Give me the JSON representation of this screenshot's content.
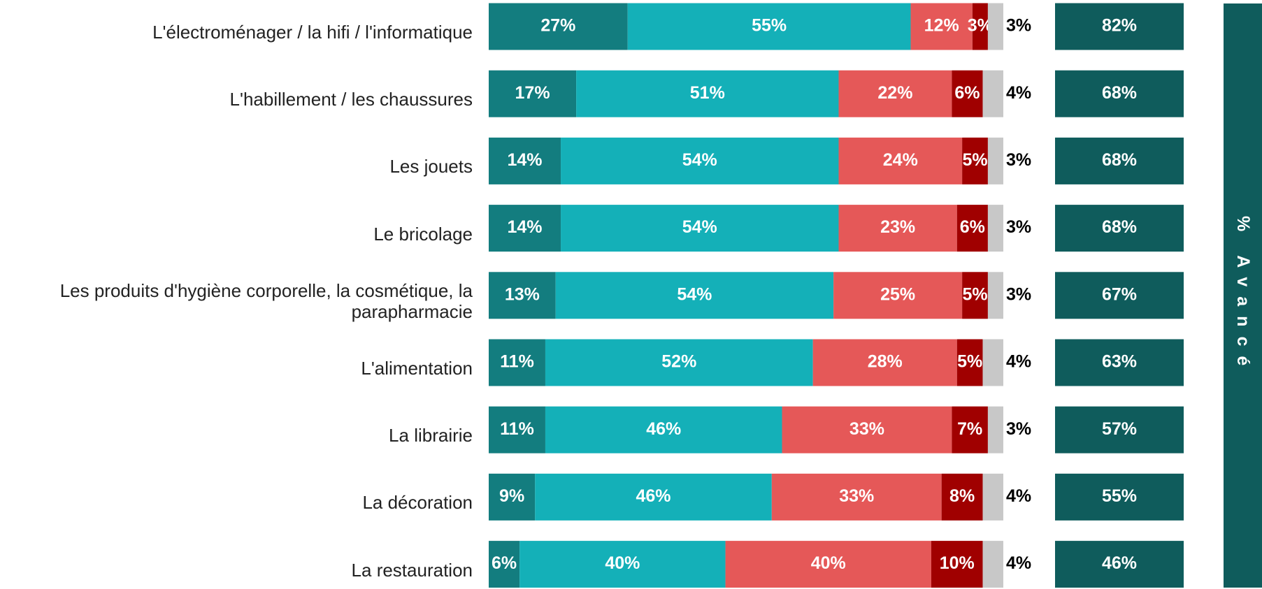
{
  "chart_data": {
    "type": "stacked-bar-horizontal",
    "categories": [
      "L'électroménager / la hifi / l'informatique",
      "L'habillement / les chaussures",
      "Les jouets",
      "Le bricolage",
      "Les produits d'hygiène corporelle, la cosmétique, la parapharmacie",
      "L'alimentation",
      "La librairie",
      "La décoration",
      "La restauration"
    ],
    "xlim": [
      0,
      100
    ],
    "series": [
      {
        "color": "#137d7f",
        "values": [
          27,
          17,
          14,
          14,
          13,
          11,
          11,
          9,
          6
        ],
        "value_labels": [
          "27%",
          "17%",
          "14%",
          "14%",
          "13%",
          "11%",
          "11%",
          "9%",
          "6%"
        ]
      },
      {
        "color": "#14b0b8",
        "values": [
          55,
          51,
          54,
          54,
          54,
          52,
          46,
          46,
          40
        ],
        "value_labels": [
          "55%",
          "51%",
          "54%",
          "54%",
          "54%",
          "52%",
          "46%",
          "46%",
          "40%"
        ]
      },
      {
        "color": "#e55858",
        "values": [
          12,
          22,
          24,
          23,
          25,
          28,
          33,
          33,
          40
        ],
        "value_labels": [
          "12%",
          "22%",
          "24%",
          "23%",
          "25%",
          "28%",
          "33%",
          "33%",
          "40%"
        ]
      },
      {
        "color": "#a00000",
        "values": [
          3,
          6,
          5,
          6,
          5,
          5,
          7,
          8,
          10
        ],
        "value_labels": [
          "3%",
          "6%",
          "5%",
          "6%",
          "5%",
          "5%",
          "7%",
          "8%",
          "10%"
        ]
      },
      {
        "color": "#c8c8c8",
        "values": [
          3,
          4,
          3,
          3,
          3,
          4,
          3,
          4,
          4
        ],
        "value_labels": [
          "3%",
          "4%",
          "3%",
          "3%",
          "3%",
          "4%",
          "3%",
          "4%",
          "4%"
        ]
      }
    ],
    "summary": {
      "label": "% Avancé",
      "color": "#0f5c5c",
      "values": [
        82,
        68,
        68,
        68,
        67,
        63,
        57,
        55,
        46
      ],
      "value_labels": [
        "82%",
        "68%",
        "68%",
        "68%",
        "67%",
        "63%",
        "57%",
        "55%",
        "46%"
      ]
    }
  }
}
